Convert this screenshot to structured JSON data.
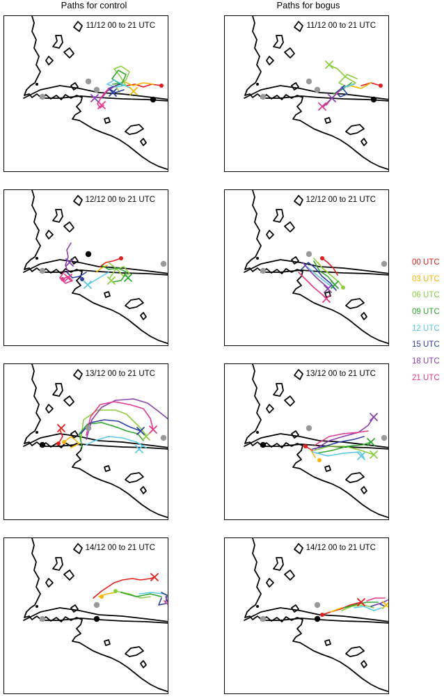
{
  "columns": [
    "Paths for control",
    "Paths for bogus"
  ],
  "panels": [
    {
      "title": "11/12 00 to 21 UTC"
    },
    {
      "title": "11/12 00 to 21 UTC"
    },
    {
      "title": "12/12 00 to 21 UTC"
    },
    {
      "title": "12/12 00 to 21 UTC"
    },
    {
      "title": "13/12 00 to 21 UTC"
    },
    {
      "title": "13/12 00 to 21 UTC"
    },
    {
      "title": "14/12 00 to 21 UTC"
    },
    {
      "title": "14/12 00 to 21 UTC"
    }
  ],
  "legend": [
    {
      "label": "00 UTC",
      "color": "#e41a1c"
    },
    {
      "label": "03 UTC",
      "color": "#f5b800"
    },
    {
      "label": "06 UTC",
      "color": "#8ccf3c"
    },
    {
      "label": "09 UTC",
      "color": "#2ea62e"
    },
    {
      "label": "12 UTC",
      "color": "#5bc8e8"
    },
    {
      "label": "15 UTC",
      "color": "#2b3fa0"
    },
    {
      "label": "18 UTC",
      "color": "#8a3fb0"
    },
    {
      "label": "21 UTC",
      "color": "#e8388c"
    }
  ]
}
